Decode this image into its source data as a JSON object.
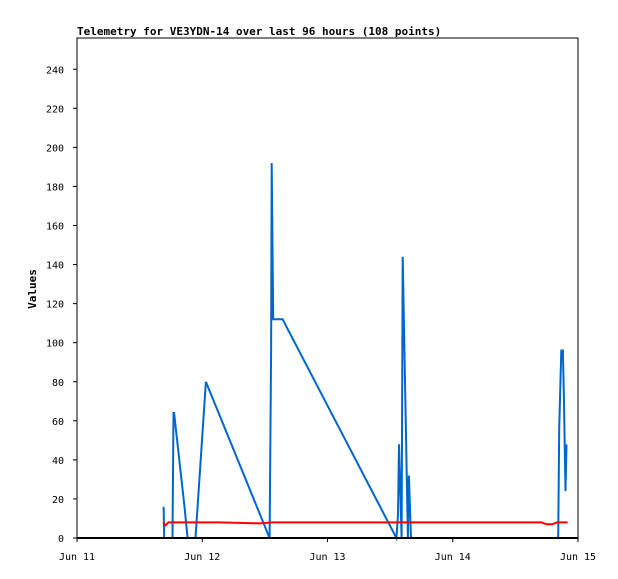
{
  "chart_data": {
    "type": "line",
    "title": "Telemetry for VE3YDN-14 over last 96 hours (108 points)",
    "xlabel": "",
    "ylabel": "Values",
    "x_ticks": [
      "Jun 11",
      "Jun 12",
      "Jun 13",
      "Jun 14",
      "Jun 15"
    ],
    "y_ticks": [
      0,
      20,
      40,
      60,
      80,
      100,
      120,
      140,
      160,
      180,
      200,
      220,
      240
    ],
    "xlim": [
      0,
      96
    ],
    "ylim": [
      0,
      256
    ],
    "grid": false,
    "colors": {
      "series_blue": "#0066cc",
      "series_red": "#ff0000",
      "series_black": "#000000",
      "frame": "#000000"
    },
    "series": [
      {
        "color": "#0066cc",
        "x": [
          16.6,
          16.7,
          16.8,
          18.3,
          18.5,
          18.6,
          20.6,
          21.2,
          22.7,
          24.7,
          36.9,
          37.2,
          37.3,
          37.6,
          38.9,
          39.4,
          61.2,
          61.5,
          61.7,
          62.2,
          62.4,
          63.4,
          63.6,
          64.0,
          64.2,
          92.2,
          92.4,
          92.8,
          93.1,
          93.3,
          93.6,
          93.8
        ],
        "y": [
          16,
          0,
          0,
          0,
          64,
          64,
          16,
          0,
          0,
          80,
          0,
          96,
          192,
          112,
          112,
          112,
          0,
          12,
          48,
          0,
          144,
          0,
          32,
          0,
          0,
          0,
          56,
          96,
          96,
          72,
          24,
          48
        ]
      },
      {
        "color": "#ff0000",
        "x": [
          16.5,
          17.0,
          17.5,
          19.0,
          27.0,
          35.0,
          37.5,
          50.0,
          62.0,
          75.0,
          87.0,
          89.0,
          90.0,
          91.0,
          92.0,
          94.0
        ],
        "y": [
          8,
          6.5,
          8,
          8,
          8,
          7.5,
          8,
          8,
          8,
          8,
          8,
          8,
          7,
          7,
          8,
          8
        ]
      },
      {
        "color": "#000000",
        "x": [
          0,
          96
        ],
        "y": [
          0,
          0
        ]
      }
    ]
  }
}
